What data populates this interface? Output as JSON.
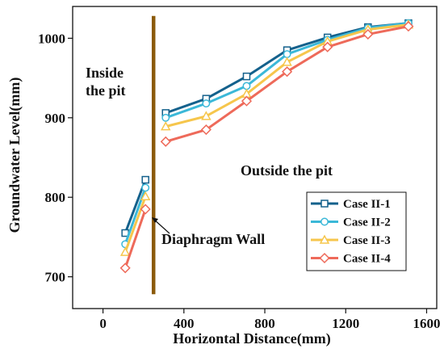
{
  "chart_data": {
    "type": "line",
    "xlabel": "Horizontal Distance(mm)",
    "ylabel": "Groundwater Level(mm)",
    "xlim": [
      -150,
      1650
    ],
    "ylim": [
      660,
      1040
    ],
    "xticks": [
      0,
      400,
      800,
      1200,
      1600
    ],
    "yticks": [
      700,
      800,
      900,
      1000
    ],
    "xtick_labels": [
      "0",
      "400",
      "800",
      "1200",
      "1600"
    ],
    "ytick_labels": [
      "700",
      "800",
      "900",
      "1000"
    ],
    "grid": false,
    "legend": "bottom-right",
    "wall": {
      "x": 250,
      "y_from": 678,
      "y_to": 1028,
      "color": "#8B5A0A",
      "label": "Diaphragm Wall"
    },
    "annotations": [
      {
        "id": "inside",
        "lines": [
          "Inside",
          "the pit"
        ]
      },
      {
        "id": "outside",
        "lines": [
          "Outside the pit"
        ]
      }
    ],
    "series": [
      {
        "name": "Case II-1",
        "color": "#14618C",
        "marker": "square",
        "segments": [
          {
            "x": [
              110,
              210
            ],
            "y": [
              755,
              822
            ]
          },
          {
            "x": [
              310,
              510,
              710,
              910,
              1110,
              1310,
              1510
            ],
            "y": [
              906,
              924,
              952,
              985,
              1001,
              1014,
              1019
            ]
          }
        ]
      },
      {
        "name": "Case II-2",
        "color": "#3BB8D8",
        "marker": "circle",
        "segments": [
          {
            "x": [
              110,
              210
            ],
            "y": [
              741,
              812
            ]
          },
          {
            "x": [
              310,
              510,
              710,
              910,
              1110,
              1310,
              1510
            ],
            "y": [
              900,
              918,
              940,
              980,
              998,
              1013,
              1019
            ]
          }
        ]
      },
      {
        "name": "Case II-3",
        "color": "#F6C64C",
        "marker": "triangle",
        "segments": [
          {
            "x": [
              110,
              210
            ],
            "y": [
              731,
              801
            ]
          },
          {
            "x": [
              310,
              510,
              710,
              910,
              1110,
              1310,
              1510
            ],
            "y": [
              889,
              902,
              930,
              970,
              996,
              1011,
              1017
            ]
          }
        ]
      },
      {
        "name": "Case II-4",
        "color": "#EE6A5A",
        "marker": "diamond",
        "segments": [
          {
            "x": [
              110,
              210
            ],
            "y": [
              711,
              785
            ]
          },
          {
            "x": [
              310,
              510,
              710,
              910,
              1110,
              1310,
              1510
            ],
            "y": [
              870,
              885,
              921,
              958,
              989,
              1005,
              1015
            ]
          }
        ]
      }
    ]
  }
}
